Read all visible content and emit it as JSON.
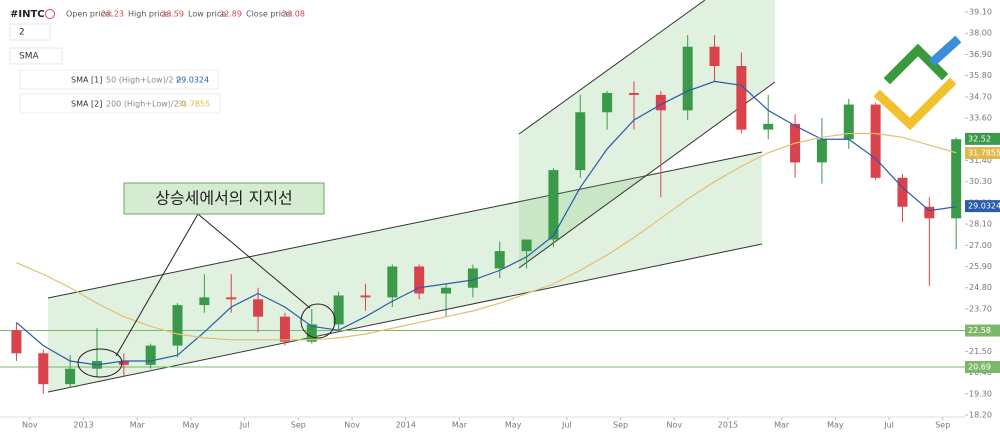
{
  "chart_data": {
    "type": "candlestick",
    "symbol": "#INTC",
    "header": {
      "open_label": "Open price:",
      "open": 23.23,
      "high_label": "High price:",
      "high": 23.59,
      "low_label": "Low price:",
      "low": 22.89,
      "close_label": "Close price:",
      "close": 23.08,
      "interval": "2",
      "indicator_menu": "SMA"
    },
    "indicators": [
      {
        "name": "SMA [1]",
        "params": "50 (High+Low)/2 0",
        "value": 29.0324,
        "color": "#2a5caa"
      },
      {
        "name": "SMA [2]",
        "params": "200 (High+Low)/2 0",
        "value": 31.7855,
        "color": "#e0b84a"
      }
    ],
    "annotation": "상승세에서의 지지선",
    "x": [
      "2012-10",
      "2012-11",
      "2012-12",
      "2013-01",
      "2013-02",
      "2013-03",
      "2013-04",
      "2013-05",
      "2013-06",
      "2013-07",
      "2013-08",
      "2013-09",
      "2013-10",
      "2013-11",
      "2013-12",
      "2014-01",
      "2014-02",
      "2014-03",
      "2014-04",
      "2014-05",
      "2014-06",
      "2014-07",
      "2014-08",
      "2014-09",
      "2014-10",
      "2014-11",
      "2014-12",
      "2015-01",
      "2015-02",
      "2015-03",
      "2015-04",
      "2015-05",
      "2015-06",
      "2015-07",
      "2015-08",
      "2015-09"
    ],
    "open": [
      22.6,
      21.4,
      19.8,
      20.6,
      21.0,
      20.8,
      21.8,
      23.9,
      24.3,
      24.2,
      23.3,
      22.0,
      22.9,
      24.4,
      24.3,
      25.9,
      24.5,
      24.8,
      25.8,
      26.7,
      27.3,
      30.9,
      33.9,
      34.9,
      34.8,
      34.0,
      37.3,
      36.3,
      33.0,
      33.3,
      31.3,
      32.5,
      34.3,
      30.5,
      29.0,
      28.4
    ],
    "high": [
      23.0,
      21.6,
      21.3,
      22.7,
      21.4,
      21.9,
      24.0,
      25.5,
      25.5,
      24.8,
      23.5,
      23.7,
      24.6,
      25.0,
      26.0,
      26.0,
      25.0,
      26.0,
      27.2,
      27.3,
      31.0,
      34.8,
      35.0,
      35.5,
      35.0,
      37.9,
      37.9,
      37.0,
      34.8,
      33.8,
      33.6,
      34.6,
      34.4,
      30.7,
      29.5,
      32.6
    ],
    "low": [
      21.0,
      19.3,
      19.6,
      20.2,
      20.2,
      20.6,
      21.2,
      23.5,
      23.5,
      22.5,
      21.8,
      21.9,
      22.5,
      23.6,
      23.8,
      24.2,
      23.3,
      24.3,
      25.3,
      25.8,
      26.9,
      30.5,
      33.0,
      33.0,
      29.5,
      33.5,
      35.5,
      32.8,
      32.5,
      30.5,
      30.2,
      32.0,
      30.4,
      28.2,
      24.9,
      26.8
    ],
    "close": [
      21.4,
      19.8,
      20.6,
      21.0,
      20.8,
      21.8,
      23.9,
      24.3,
      24.2,
      23.3,
      22.0,
      22.9,
      24.4,
      24.3,
      25.9,
      24.5,
      24.8,
      25.8,
      26.7,
      27.3,
      30.9,
      33.9,
      34.9,
      34.8,
      34.0,
      37.3,
      36.3,
      33.0,
      33.3,
      31.3,
      32.5,
      34.3,
      30.5,
      29.0,
      28.4,
      32.5
    ],
    "up_color": "#3a9a4a",
    "down_color": "#d9434b",
    "series": [
      {
        "name": "SMA [1]",
        "color": "#2a5caa",
        "values": [
          23.0,
          21.8,
          21.0,
          20.8,
          21.0,
          21.0,
          21.3,
          22.5,
          23.8,
          24.5,
          23.8,
          22.8,
          22.6,
          23.3,
          24.1,
          24.8,
          25.0,
          25.2,
          25.7,
          26.4,
          27.5,
          30.0,
          32.0,
          33.5,
          34.3,
          35.0,
          35.5,
          35.3,
          34.0,
          33.2,
          32.5,
          32.5,
          31.5,
          30.0,
          28.8,
          29.0
        ]
      },
      {
        "name": "SMA [2]",
        "color": "#e0c070",
        "values": [
          26.1,
          25.5,
          24.8,
          24.0,
          23.3,
          22.8,
          22.4,
          22.2,
          22.1,
          22.1,
          22.1,
          22.1,
          22.2,
          22.4,
          22.7,
          23.0,
          23.3,
          23.6,
          24.0,
          24.5,
          25.0,
          25.7,
          26.5,
          27.4,
          28.4,
          29.4,
          30.3,
          31.1,
          31.8,
          32.3,
          32.6,
          32.8,
          32.8,
          32.6,
          32.2,
          31.8
        ]
      }
    ],
    "hlines": [
      {
        "value": 22.58,
        "label": "22.58",
        "color": "#7cb86a"
      },
      {
        "value": 20.69,
        "label": "20.69",
        "color": "#7cb86a"
      }
    ],
    "price_badges": [
      {
        "value": 32.52,
        "label": "32.52",
        "color": "#3a9a4a"
      },
      {
        "value": 31.7855,
        "label": "31.7855",
        "color": "#e0b84a"
      },
      {
        "value": 29.0324,
        "label": "29.0324",
        "color": "#2a5caa"
      }
    ],
    "ylim": [
      18.2,
      39.1
    ],
    "yticks": [
      {
        "value": 39.1,
        "label": "39.10"
      },
      {
        "value": 38,
        "label": "38.00"
      },
      {
        "value": 36.9,
        "label": "36.90"
      },
      {
        "value": 35.8,
        "label": "35.80"
      },
      {
        "value": 34.7,
        "label": "34.70"
      },
      {
        "value": 33.6,
        "label": "33.60"
      },
      {
        "value": 32.5,
        "label": "32.50"
      },
      {
        "value": 31.4,
        "label": "31.40"
      },
      {
        "value": 30.3,
        "label": "30.30"
      },
      {
        "value": 29.2,
        "label": "29.20"
      },
      {
        "value": 28.1,
        "label": "28.10"
      },
      {
        "value": 27,
        "label": "27.00"
      },
      {
        "value": 25.9,
        "label": "25.90"
      },
      {
        "value": 24.8,
        "label": "24.80"
      },
      {
        "value": 23.7,
        "label": "23.70"
      },
      {
        "value": 22.6,
        "label": "22.60"
      },
      {
        "value": 21.5,
        "label": "21.50"
      },
      {
        "value": 20.4,
        "label": "20.40"
      },
      {
        "value": 19.3,
        "label": "19.30"
      },
      {
        "value": 18.2,
        "label": "18.20"
      }
    ],
    "xticks": [
      {
        "value": "2012-11",
        "label": "Nov"
      },
      {
        "value": "2013-01",
        "label": "2013"
      },
      {
        "value": "2013-03",
        "label": "Mar"
      },
      {
        "value": "2013-05",
        "label": "May"
      },
      {
        "value": "2013-07",
        "label": "Jul"
      },
      {
        "value": "2013-09",
        "label": "Sep"
      },
      {
        "value": "2013-11",
        "label": "Nov"
      },
      {
        "value": "2014-01",
        "label": "2014"
      },
      {
        "value": "2014-03",
        "label": "Mar"
      },
      {
        "value": "2014-05",
        "label": "May"
      },
      {
        "value": "2014-07",
        "label": "Jul"
      },
      {
        "value": "2014-09",
        "label": "Sep"
      },
      {
        "value": "2014-11",
        "label": "Nov"
      },
      {
        "value": "2015-01",
        "label": "2015"
      },
      {
        "value": "2015-03",
        "label": "Mar"
      },
      {
        "value": "2015-05",
        "label": "May"
      },
      {
        "value": "2015-07",
        "label": "Jul"
      },
      {
        "value": "2015-09",
        "label": "Sep"
      }
    ]
  }
}
